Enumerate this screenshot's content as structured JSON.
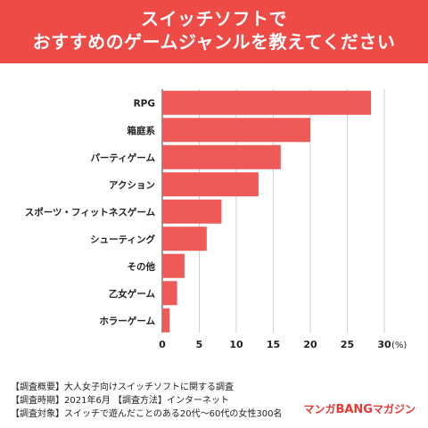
{
  "header": {
    "title_line1": "スイッチソフトで",
    "title_line2": "おすすめのゲームジャンルを教えてください"
  },
  "chart_data": {
    "type": "bar",
    "orientation": "horizontal",
    "categories": [
      "RPG",
      "箱庭系",
      "パーティゲーム",
      "アクション",
      "スポーツ・フィットネスゲーム",
      "シューティング",
      "その他",
      "乙女ゲーム",
      "ホラーゲーム"
    ],
    "values": [
      28.2,
      20.0,
      16.0,
      13.0,
      8.0,
      6.0,
      3.0,
      2.0,
      1.0
    ],
    "xlim": [
      0,
      30
    ],
    "xticks": [
      0,
      5,
      10,
      15,
      20,
      25,
      30
    ],
    "unit_label": "(%)",
    "bar_color": "#ee5a57",
    "grid": "vertical-lines"
  },
  "notes": {
    "line1": "【調査概要】大人女子向けスイッチソフトに関する調査",
    "line2": "【調査時期】2021年6月 【調査方法】インターネット",
    "line3": "【調査対象】スイッチで遊んだことのある20代〜60代の女性300名"
  },
  "logo": {
    "part1": "マンガ",
    "part2": "BANG",
    "part3": "マガジン"
  },
  "colors": {
    "header_bg": "#ee4a46",
    "accent": "#e53935"
  }
}
